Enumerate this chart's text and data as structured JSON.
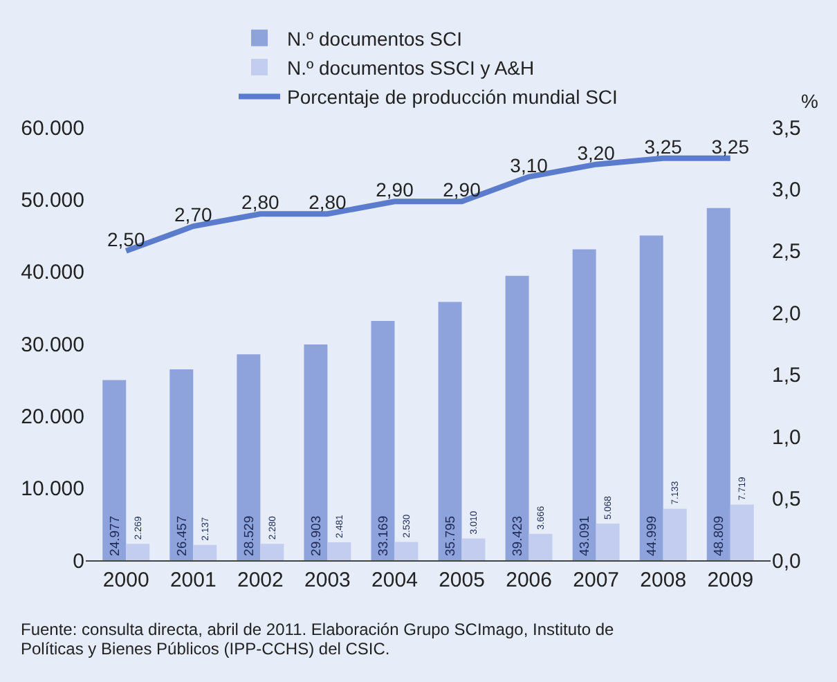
{
  "chart_data": {
    "type": "bar",
    "categories": [
      "2000",
      "2001",
      "2002",
      "2003",
      "2004",
      "2005",
      "2006",
      "2007",
      "2008",
      "2009"
    ],
    "series": [
      {
        "name": "N.º documentos SCI",
        "color": "#8ea2dc",
        "values": [
          24977,
          26457,
          28529,
          29903,
          33169,
          35795,
          39423,
          43091,
          44999,
          48809
        ],
        "value_labels": [
          "24.977",
          "26.457",
          "28.529",
          "29.903",
          "33.169",
          "35.795",
          "39.423",
          "43.091",
          "44.999",
          "48.809"
        ]
      },
      {
        "name": "N.º documentos SSCI y A&H",
        "color": "#c3cdef",
        "values": [
          2269,
          2137,
          2280,
          2481,
          2530,
          3010,
          3666,
          5068,
          7133,
          7719
        ],
        "value_labels": [
          "2.269",
          "2.137",
          "2.280",
          "2.481",
          "2.530",
          "3.010",
          "3.666",
          "5.068",
          "7.133",
          "7.719"
        ]
      },
      {
        "name": "Porcentaje de producción mundial SCI",
        "type": "line",
        "axis": "y2",
        "color": "#5b7ccc",
        "marker": "none",
        "values": [
          2.5,
          2.7,
          2.8,
          2.8,
          2.9,
          2.9,
          3.1,
          3.2,
          3.25,
          3.25
        ],
        "value_labels": [
          "2,50",
          "2,70",
          "2,80",
          "2,80",
          "2,90",
          "2,90",
          "3,10",
          "3,20",
          "3,25",
          "3,25"
        ]
      }
    ],
    "ylim": [
      0,
      60000
    ],
    "yticks": [
      {
        "value": 0,
        "label": "0"
      },
      {
        "value": 10000,
        "label": "10.000"
      },
      {
        "value": 20000,
        "label": "20.000"
      },
      {
        "value": 30000,
        "label": "30.000"
      },
      {
        "value": 40000,
        "label": "40.000"
      },
      {
        "value": 50000,
        "label": "50.000"
      },
      {
        "value": 60000,
        "label": "60.000"
      }
    ],
    "y2lim": [
      0,
      3.5
    ],
    "y2ticks": [
      {
        "value": 0,
        "label": "0,0"
      },
      {
        "value": 0.5,
        "label": "0,5"
      },
      {
        "value": 1,
        "label": "1,0"
      },
      {
        "value": 1.5,
        "label": "1,5"
      },
      {
        "value": 2,
        "label": "2,0"
      },
      {
        "value": 2.5,
        "label": "2,5"
      },
      {
        "value": 3,
        "label": "3,0"
      },
      {
        "value": 3.5,
        "label": "3,5"
      }
    ],
    "y2label": "%",
    "legend": "top",
    "grid": false,
    "annotations": [
      "Fuente: consulta directa, abril de 2011. Elaboración Grupo SCImago, Instituto de Políticas y Bienes Públicos (IPP-CCHS) del CSIC."
    ]
  }
}
